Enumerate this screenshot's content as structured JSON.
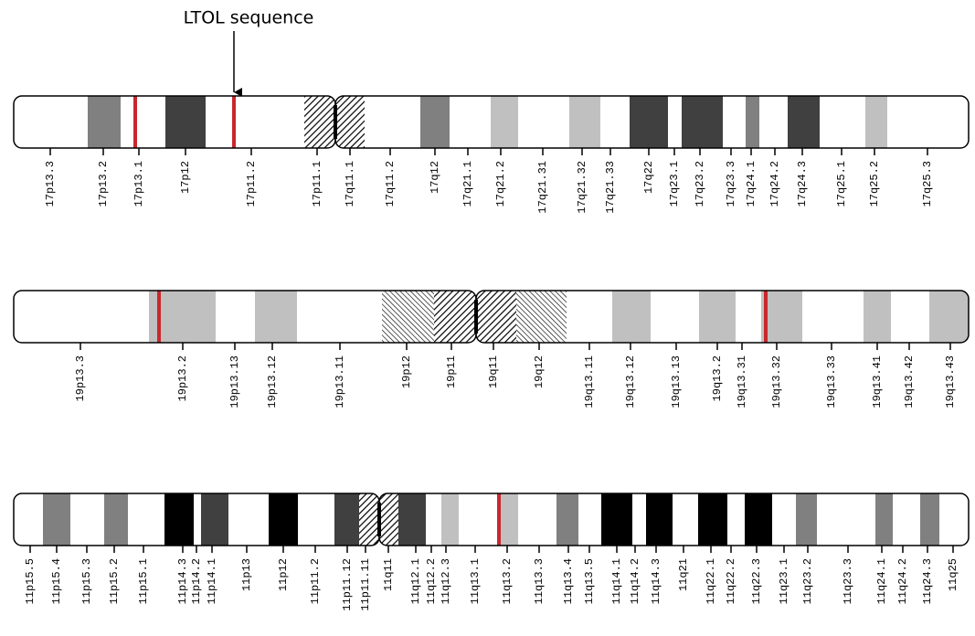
{
  "annotation": {
    "label": "LTOL sequence"
  },
  "chromosomes": [
    {
      "bands": [
        "17p13.3",
        "17p13.2",
        "17p13.1",
        "17p12",
        "17p11.2",
        "17p11.1",
        "17q11.1",
        "17q11.2",
        "17q12",
        "17q21.1",
        "17q21.2",
        "17q21.31",
        "17q21.32",
        "17q21.33",
        "17q22",
        "17q23.1",
        "17q23.2",
        "17q23.3",
        "17q24.1",
        "17q24.2",
        "17q24.3",
        "17q25.1",
        "17q25.2",
        "17q25.3"
      ]
    },
    {
      "bands": [
        "19p13.3",
        "19p13.2",
        "19p13.13",
        "19p13.12",
        "19p13.11",
        "19p12",
        "19p11",
        "19q11",
        "19q12",
        "19q13.11",
        "19q13.12",
        "19q13.13",
        "19q13.2",
        "19q13.31",
        "19q13.32",
        "19q13.33",
        "19q13.41",
        "19q13.42",
        "19q13.43"
      ]
    },
    {
      "bands": [
        "11p15.5",
        "11p15.4",
        "11p15.3",
        "11p15.2",
        "11p15.1",
        "11p14.3",
        "11p14.2",
        "11p14.1",
        "11p13",
        "11p12",
        "11p11.2",
        "11p11.12",
        "11p11.11",
        "11q11",
        "11q12.1",
        "11q12.2",
        "11q12.3",
        "11q13.1",
        "11q13.2",
        "11q13.3",
        "11q13.4",
        "11q13.5",
        "11q14.1",
        "11q14.2",
        "11q14.3",
        "11q21",
        "11q22.1",
        "11q22.2",
        "11q22.3",
        "11q23.1",
        "11q23.2",
        "11q23.3",
        "11q24.1",
        "11q24.2",
        "11q24.3",
        "11q25"
      ]
    }
  ]
}
